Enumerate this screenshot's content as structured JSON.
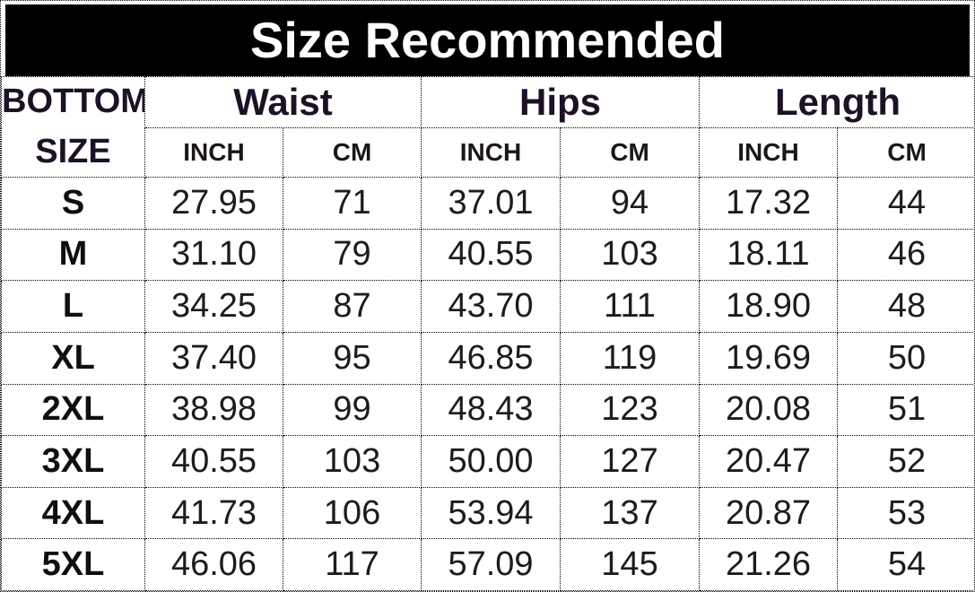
{
  "title": "Size Recommended",
  "colors": {
    "title_bg": "#000000",
    "title_text": "#ffffff",
    "header_text": "#1d1126",
    "subheader_text": "#1c1717",
    "size_text": "#0f0f0f",
    "body_text": "#1c1c1c",
    "border": "#000000"
  },
  "table": {
    "corner": {
      "line1": "BOTTOM",
      "line2": "SIZE"
    },
    "group_headers": [
      "Waist",
      "Hips",
      "Length"
    ],
    "sub_headers": [
      "INCH",
      "CM",
      "INCH",
      "CM",
      "INCH",
      "CM"
    ],
    "rows": [
      {
        "size": "S",
        "cells": [
          "27.95",
          "71",
          "37.01",
          "94",
          "17.32",
          "44"
        ]
      },
      {
        "size": "M",
        "cells": [
          "31.10",
          "79",
          "40.55",
          "103",
          "18.11",
          "46"
        ]
      },
      {
        "size": "L",
        "cells": [
          "34.25",
          "87",
          "43.70",
          "111",
          "18.90",
          "48"
        ]
      },
      {
        "size": "XL",
        "cells": [
          "37.40",
          "95",
          "46.85",
          "119",
          "19.69",
          "50"
        ]
      },
      {
        "size": "2XL",
        "cells": [
          "38.98",
          "99",
          "48.43",
          "123",
          "20.08",
          "51"
        ]
      },
      {
        "size": "3XL",
        "cells": [
          "40.55",
          "103",
          "50.00",
          "127",
          "20.47",
          "52"
        ]
      },
      {
        "size": "4XL",
        "cells": [
          "41.73",
          "106",
          "53.94",
          "137",
          "20.87",
          "53"
        ]
      },
      {
        "size": "5XL",
        "cells": [
          "46.06",
          "117",
          "57.09",
          "145",
          "21.26",
          "54"
        ]
      }
    ]
  }
}
